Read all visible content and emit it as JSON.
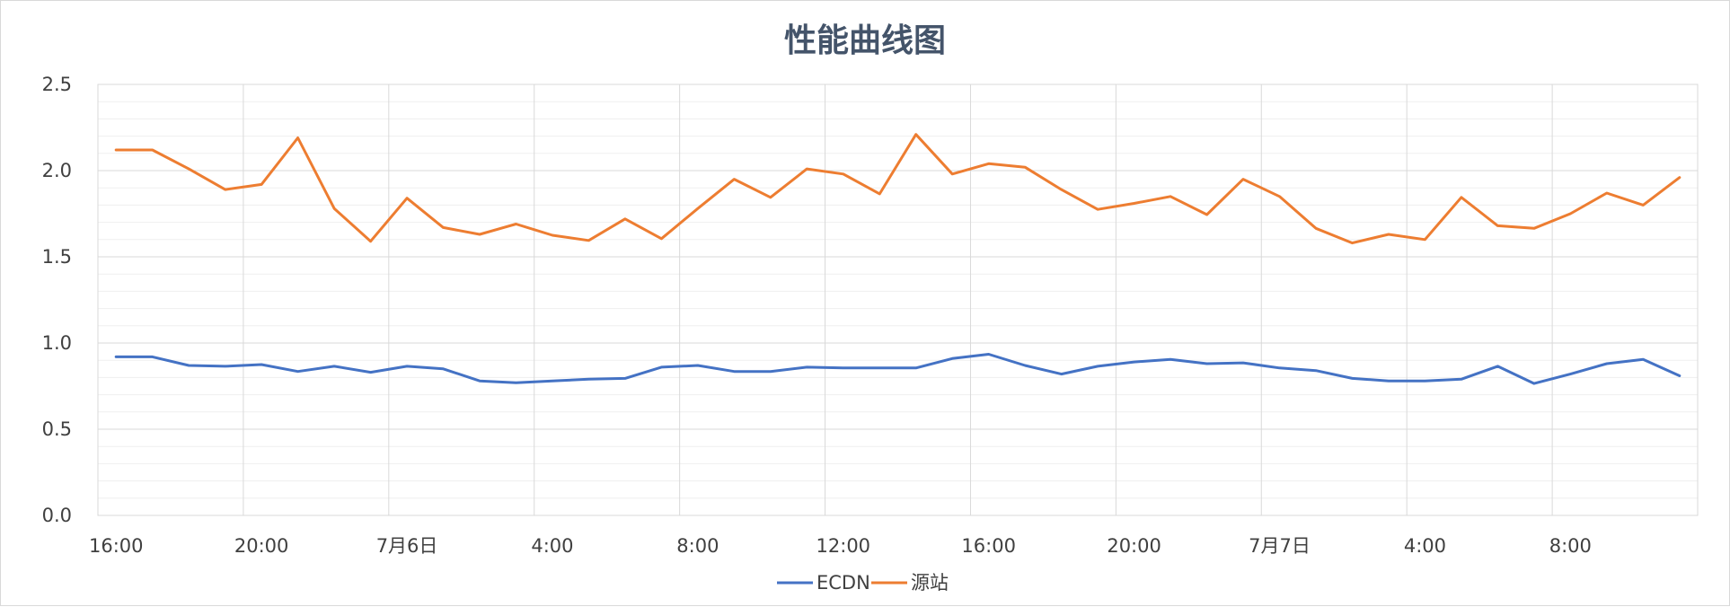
{
  "chart_data": {
    "type": "line",
    "title": "性能曲线图",
    "xlabel": "",
    "ylabel": "",
    "ylim": [
      0,
      2.5
    ],
    "y_major_ticks": [
      "0.0",
      "0.5",
      "1.0",
      "1.5",
      "2.0",
      "2.5"
    ],
    "y_minor_step": 0.1,
    "x_tick_labels": [
      "16:00",
      "20:00",
      "7月6日",
      "4:00",
      "8:00",
      "12:00",
      "16:00",
      "20:00",
      "7月7日",
      "4:00",
      "8:00"
    ],
    "x_tick_every_points": 4,
    "grid": true,
    "legend_position": "bottom",
    "colors": {
      "ECDN": "#4472c4",
      "源站": "#ed7d31"
    },
    "series": [
      {
        "name": "ECDN",
        "values": [
          0.92,
          0.92,
          0.87,
          0.865,
          0.875,
          0.835,
          0.865,
          0.83,
          0.865,
          0.85,
          0.78,
          0.77,
          0.78,
          0.79,
          0.795,
          0.86,
          0.87,
          0.835,
          0.835,
          0.86,
          0.855,
          0.855,
          0.855,
          0.91,
          0.935,
          0.87,
          0.82,
          0.865,
          0.89,
          0.905,
          0.88,
          0.885,
          0.855,
          0.84,
          0.795,
          0.78,
          0.78,
          0.79,
          0.865,
          0.765,
          0.82,
          0.88,
          0.905,
          0.81
        ]
      },
      {
        "name": "源站",
        "values": [
          2.12,
          2.12,
          2.01,
          1.89,
          1.92,
          2.19,
          1.78,
          1.59,
          1.84,
          1.67,
          1.63,
          1.69,
          1.625,
          1.595,
          1.72,
          1.605,
          1.78,
          1.95,
          1.845,
          2.01,
          1.98,
          1.865,
          2.21,
          1.98,
          2.04,
          2.02,
          1.89,
          1.775,
          1.81,
          1.85,
          1.745,
          1.95,
          1.85,
          1.665,
          1.58,
          1.63,
          1.6,
          1.845,
          1.68,
          1.665,
          1.75,
          1.87,
          1.8,
          1.96
        ]
      }
    ]
  }
}
